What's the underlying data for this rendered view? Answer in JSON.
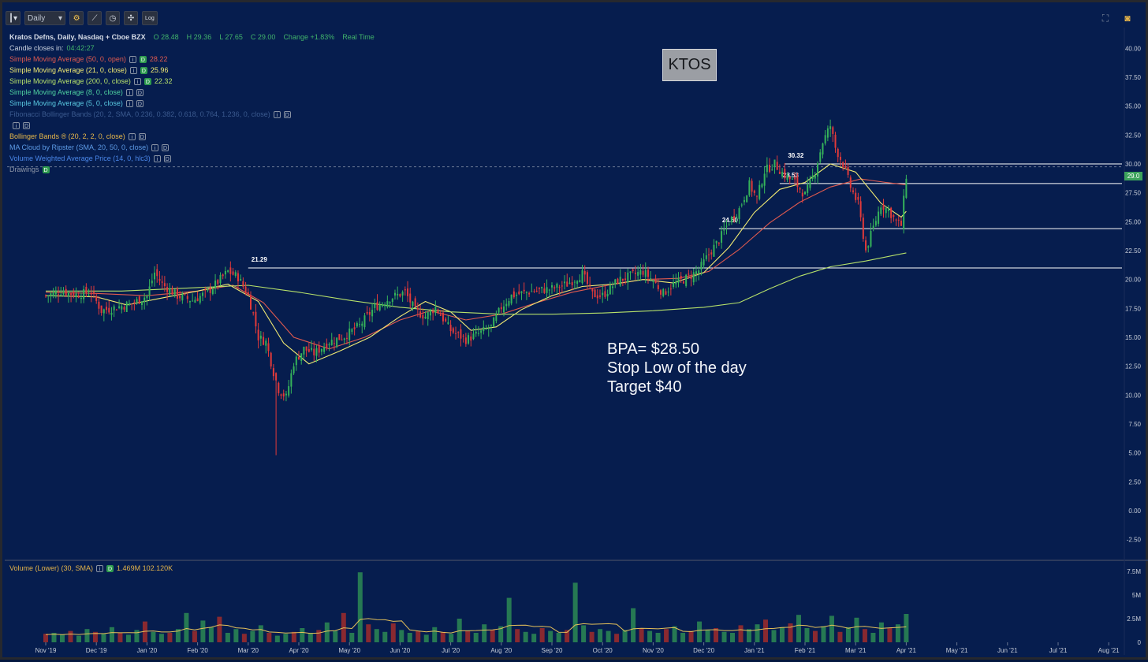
{
  "toolbar": {
    "interval": "Daily",
    "log_label": "Log"
  },
  "header": {
    "symbol_line": "Kratos Defns, Daily, Nasdaq + Cboe BZX",
    "open": "O 28.48",
    "high": "H 29.36",
    "low": "L 27.65",
    "close": "C 29.00",
    "change": "Change +1.83%",
    "realtime": "Real Time",
    "candle_label": "Candle closes in:",
    "candle_time": "04:42:27"
  },
  "studies": [
    {
      "label": "Simple Moving Average (50, 0, open)",
      "value": "28.22",
      "color": "#e05a4f",
      "value_color": "#e05a4f",
      "green": true
    },
    {
      "label": "Simple Moving Average (21, 0, close)",
      "value": "25.96",
      "color": "#f1ea72",
      "value_color": "#f1ea72",
      "green": true
    },
    {
      "label": "Simple Moving Average (200, 0, close)",
      "value": "22.32",
      "color": "#b7e26a",
      "value_color": "#b7e26a",
      "green": true
    },
    {
      "label": "Simple Moving Average (8, 0, close)",
      "value": "",
      "color": "#4fd2a0",
      "value_color": "#4fd2a0",
      "green": false
    },
    {
      "label": "Simple Moving Average (5, 0, close)",
      "value": "",
      "color": "#59c8e0",
      "value_color": "#59c8e0",
      "green": false
    },
    {
      "label": "Fibonacci Bollinger Bands (20, 2, SMA, 0.236, 0.382, 0.618, 0.764, 1.236, 0, close)",
      "value": "",
      "color": "#3b5a8f",
      "value_color": "#3b5a8f",
      "green": false
    },
    {
      "label": "",
      "value": "",
      "color": "#2a427a",
      "value_color": "#2a427a",
      "green": false
    },
    {
      "label": "Bollinger Bands ® (20, 2, 2, 0, close)",
      "value": "",
      "color": "#e8b94a",
      "value_color": "#e8b94a",
      "green": false
    },
    {
      "label": "MA Cloud by Ripster (SMA, 20, 50, 0, close)",
      "value": "",
      "color": "#5d9be6",
      "value_color": "#5d9be6",
      "green": false
    },
    {
      "label": "Volume Weighted Average Price (14, 0, hlc3)",
      "value": "",
      "color": "#4a86e8",
      "value_color": "#4a86e8",
      "green": false
    }
  ],
  "drawings_label": "Drawings",
  "ticker_box": "KTOS",
  "note": [
    "BPA= $28.50",
    "Stop Low of the day",
    "Target $40"
  ],
  "volume_legend": {
    "label": "Volume (Lower) (30, SMA)",
    "value": "1.469M 102.120K"
  },
  "price_tag": "29.0",
  "chart_data": {
    "type": "candlestick",
    "title": "Kratos Defns, Daily, Nasdaq + Cboe BZX",
    "ylim": [
      -3.75,
      41.25
    ],
    "y_ticks": [
      "40.00",
      "37.50",
      "35.00",
      "32.50",
      "30.00",
      "27.50",
      "25.00",
      "22.50",
      "20.00",
      "17.50",
      "15.00",
      "12.50",
      "10.00",
      "7.50",
      "5.00",
      "2.50",
      "0.00",
      "-2.50"
    ],
    "x_ticks": [
      "Nov '19",
      "Dec '19",
      "Jan '20",
      "Feb '20",
      "Mar '20",
      "Apr '20",
      "May '20",
      "Jun '20",
      "Jul '20",
      "Aug '20",
      "Sep '20",
      "Oct '20",
      "Nov '20",
      "Dec '20",
      "Jan '21",
      "Feb '21",
      "Mar '21",
      "Apr '21",
      "May '21",
      "Jun '21",
      "Jul '21",
      "Aug '21"
    ],
    "x_tick_index": [
      0,
      1,
      2,
      3,
      4,
      5,
      6,
      7,
      8,
      9,
      10,
      11,
      12,
      13,
      14,
      15,
      16,
      17,
      18,
      19,
      20,
      21
    ],
    "month_axis": "months from Nov '19",
    "close_path": [
      [
        0.0,
        18.6
      ],
      [
        0.3,
        19.0
      ],
      [
        0.6,
        18.7
      ],
      [
        0.9,
        18.9
      ],
      [
        1.1,
        17.3
      ],
      [
        1.4,
        17.6
      ],
      [
        1.7,
        17.9
      ],
      [
        2.0,
        18.6
      ],
      [
        2.15,
        20.6
      ],
      [
        2.3,
        19.6
      ],
      [
        2.6,
        18.6
      ],
      [
        2.9,
        18.2
      ],
      [
        3.2,
        18.9
      ],
      [
        3.4,
        19.8
      ],
      [
        3.6,
        20.7
      ],
      [
        3.8,
        20.2
      ],
      [
        4.0,
        18.6
      ],
      [
        4.1,
        17.0
      ],
      [
        4.2,
        15.0
      ],
      [
        4.35,
        14.6
      ],
      [
        4.5,
        12.0
      ],
      [
        4.6,
        10.5
      ],
      [
        4.75,
        9.8
      ],
      [
        4.9,
        12.8
      ],
      [
        5.1,
        14.0
      ],
      [
        5.3,
        13.6
      ],
      [
        5.6,
        14.6
      ],
      [
        5.9,
        15.1
      ],
      [
        6.2,
        16.0
      ],
      [
        6.5,
        17.6
      ],
      [
        6.8,
        18.4
      ],
      [
        7.1,
        18.9
      ],
      [
        7.3,
        17.3
      ],
      [
        7.5,
        16.8
      ],
      [
        7.7,
        17.6
      ],
      [
        8.0,
        15.6
      ],
      [
        8.3,
        14.8
      ],
      [
        8.5,
        15.2
      ],
      [
        8.8,
        15.9
      ],
      [
        9.0,
        17.6
      ],
      [
        9.2,
        18.6
      ],
      [
        9.5,
        18.9
      ],
      [
        9.8,
        19.1
      ],
      [
        10.0,
        19.2
      ],
      [
        10.3,
        19.6
      ],
      [
        10.6,
        20.5
      ],
      [
        10.8,
        18.7
      ],
      [
        11.0,
        18.6
      ],
      [
        11.3,
        19.9
      ],
      [
        11.6,
        20.4
      ],
      [
        11.8,
        20.7
      ],
      [
        12.0,
        19.9
      ],
      [
        12.2,
        18.8
      ],
      [
        12.4,
        19.6
      ],
      [
        12.7,
        20.2
      ],
      [
        12.9,
        20.8
      ],
      [
        13.1,
        22.2
      ],
      [
        13.3,
        23.4
      ],
      [
        13.5,
        25.0
      ],
      [
        13.7,
        26.1
      ],
      [
        13.9,
        28.2
      ],
      [
        14.05,
        27.0
      ],
      [
        14.2,
        29.4
      ],
      [
        14.4,
        30.0
      ],
      [
        14.6,
        29.0
      ],
      [
        14.8,
        28.4
      ],
      [
        15.0,
        27.3
      ],
      [
        15.2,
        29.4
      ],
      [
        15.35,
        31.9
      ],
      [
        15.5,
        33.3
      ],
      [
        15.6,
        31.4
      ],
      [
        15.75,
        30.0
      ],
      [
        15.9,
        28.0
      ],
      [
        16.05,
        26.5
      ],
      [
        16.2,
        22.5
      ],
      [
        16.35,
        24.5
      ],
      [
        16.5,
        26.5
      ],
      [
        16.65,
        26.0
      ],
      [
        16.8,
        25.0
      ],
      [
        16.9,
        24.7
      ],
      [
        17.0,
        29.0
      ]
    ],
    "series": [
      {
        "name": "Simple Moving Average (50, 0, open)",
        "color": "#e05a4f",
        "values": [
          [
            0.0,
            18.9
          ],
          [
            1.0,
            18.8
          ],
          [
            2.0,
            18.6
          ],
          [
            3.0,
            19.0
          ],
          [
            3.7,
            19.5
          ],
          [
            4.3,
            18.0
          ],
          [
            4.9,
            15.0
          ],
          [
            5.6,
            14.0
          ],
          [
            6.3,
            15.0
          ],
          [
            7.0,
            16.5
          ],
          [
            7.6,
            17.3
          ],
          [
            8.3,
            16.5
          ],
          [
            9.0,
            17.0
          ],
          [
            9.7,
            18.0
          ],
          [
            10.4,
            18.9
          ],
          [
            11.1,
            19.5
          ],
          [
            11.8,
            20.0
          ],
          [
            12.5,
            20.1
          ],
          [
            13.1,
            20.7
          ],
          [
            13.7,
            22.6
          ],
          [
            14.3,
            24.9
          ],
          [
            14.9,
            26.7
          ],
          [
            15.5,
            28.0
          ],
          [
            16.1,
            28.7
          ],
          [
            16.6,
            28.4
          ],
          [
            17.0,
            28.2
          ]
        ]
      },
      {
        "name": "Simple Moving Average (21, 0, close)",
        "color": "#f1ea72",
        "values": [
          [
            0.0,
            18.6
          ],
          [
            1.0,
            18.5
          ],
          [
            1.6,
            17.8
          ],
          [
            2.3,
            18.4
          ],
          [
            3.0,
            19.0
          ],
          [
            3.6,
            19.6
          ],
          [
            4.2,
            18.1
          ],
          [
            4.7,
            14.5
          ],
          [
            5.2,
            12.7
          ],
          [
            5.8,
            13.8
          ],
          [
            6.4,
            15.0
          ],
          [
            7.0,
            16.8
          ],
          [
            7.5,
            18.1
          ],
          [
            8.0,
            17.2
          ],
          [
            8.4,
            15.6
          ],
          [
            8.9,
            15.9
          ],
          [
            9.4,
            17.4
          ],
          [
            10.0,
            18.6
          ],
          [
            10.6,
            19.4
          ],
          [
            11.2,
            19.6
          ],
          [
            11.8,
            20.0
          ],
          [
            12.4,
            19.7
          ],
          [
            13.0,
            20.6
          ],
          [
            13.5,
            22.8
          ],
          [
            14.0,
            25.8
          ],
          [
            14.5,
            27.8
          ],
          [
            15.0,
            28.4
          ],
          [
            15.5,
            30.0
          ],
          [
            16.0,
            29.3
          ],
          [
            16.5,
            26.6
          ],
          [
            16.9,
            25.4
          ],
          [
            17.0,
            25.9
          ]
        ]
      },
      {
        "name": "Simple Moving Average (200, 0, close)",
        "color": "#b7e26a",
        "values": [
          [
            0.0,
            19.0
          ],
          [
            1.5,
            19.0
          ],
          [
            3.0,
            19.3
          ],
          [
            4.0,
            19.5
          ],
          [
            5.0,
            18.9
          ],
          [
            6.0,
            18.2
          ],
          [
            7.0,
            17.6
          ],
          [
            8.0,
            17.2
          ],
          [
            9.0,
            17.0
          ],
          [
            10.0,
            17.0
          ],
          [
            11.0,
            17.1
          ],
          [
            12.0,
            17.3
          ],
          [
            13.0,
            17.6
          ],
          [
            13.7,
            18.0
          ],
          [
            14.3,
            19.2
          ],
          [
            14.9,
            20.3
          ],
          [
            15.5,
            21.1
          ],
          [
            16.2,
            21.6
          ],
          [
            17.0,
            22.3
          ]
        ]
      }
    ],
    "levels": [
      {
        "label": "21.29",
        "value": 21.0,
        "from": 4.0
      },
      {
        "label": "24.60",
        "value": 24.4,
        "from": 13.3
      },
      {
        "label": "28.53",
        "value": 28.3,
        "from": 14.5
      },
      {
        "label": "30.32",
        "value": 30.0,
        "from": 14.6
      }
    ],
    "current_price": 29.0,
    "volume": {
      "ylim": [
        0,
        8.0
      ],
      "y_ticks": [
        "7.5M",
        "5M",
        "2.5M",
        "0"
      ],
      "values": [
        0.9,
        1.0,
        0.8,
        1.2,
        0.7,
        1.4,
        1.1,
        0.9,
        1.6,
        1.0,
        0.8,
        1.3,
        2.2,
        1.1,
        0.9,
        1.0,
        1.4,
        3.1,
        1.2,
        2.3,
        1.6,
        2.7,
        1.0,
        1.4,
        0.9,
        1.2,
        1.8,
        1.0,
        0.7,
        0.9,
        1.1,
        1.5,
        1.0,
        1.3,
        2.1,
        1.2,
        3.1,
        1.0,
        7.4,
        1.9,
        1.4,
        1.1,
        2.0,
        1.3,
        1.0,
        1.2,
        0.8,
        1.6,
        1.1,
        0.9,
        2.5,
        1.2,
        1.0,
        1.9,
        1.3,
        1.7,
        4.7,
        1.4,
        1.1,
        0.9,
        1.5,
        1.2,
        1.0,
        1.3,
        6.3,
        1.8,
        1.1,
        1.4,
        1.2,
        0.9,
        1.3,
        3.6,
        1.5,
        1.2,
        1.0,
        1.4,
        1.7,
        1.0,
        1.2,
        2.2,
        1.3,
        1.5,
        1.1,
        1.0,
        1.8,
        1.4,
        1.9,
        2.4,
        1.3,
        1.6,
        2.0,
        2.9,
        1.5,
        1.2,
        1.7,
        2.8,
        1.1,
        1.6,
        2.6,
        1.4,
        1.0,
        2.1,
        1.5,
        1.9,
        3.0
      ]
    }
  }
}
